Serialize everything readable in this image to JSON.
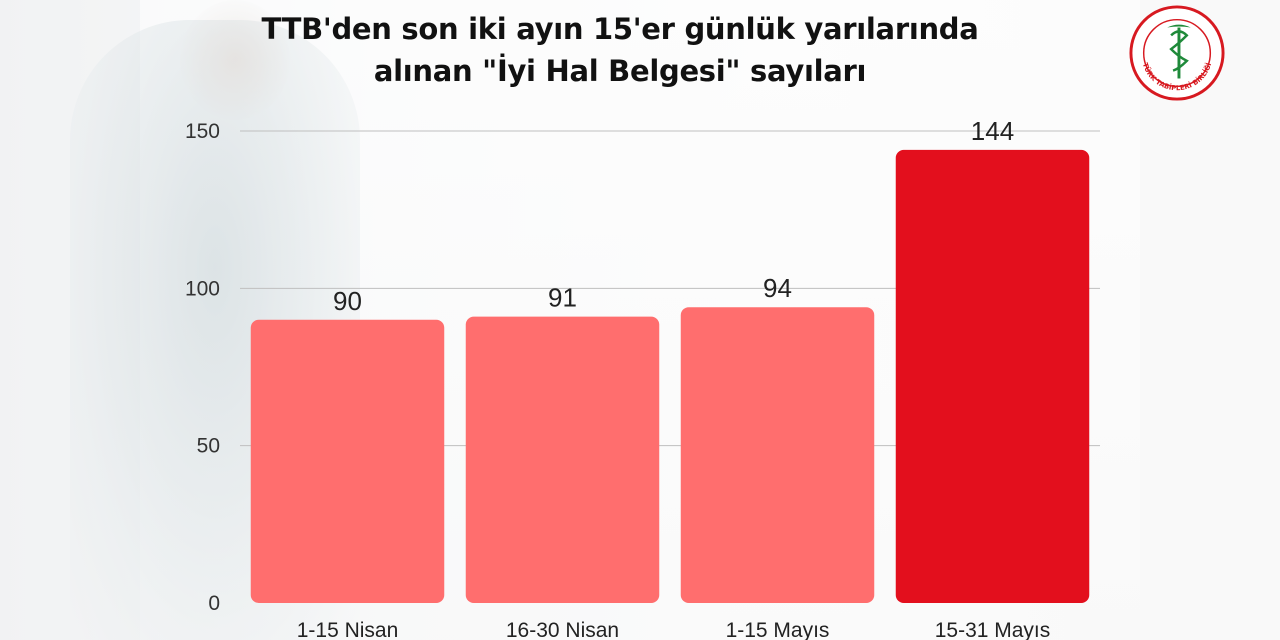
{
  "colors": {
    "bar_default": "#ff6e6e",
    "bar_highlight": "#e30f1d",
    "logo_red": "#d71920"
  },
  "header": {
    "title_line1": "TTB'den son iki ayın 15'er günlük yarılarında",
    "title_line2": "alınan \"İyi Hal Belgesi\" sayıları"
  },
  "logo": {
    "icon": "turk-tabipleri-birligi-logo-icon",
    "text": "TÜRK TABİPLERİ BİRLİĞİ"
  },
  "chart_data": {
    "type": "bar",
    "title": "TTB'den son iki ayın 15'er günlük yarılarında alınan \"İyi Hal Belgesi\" sayıları",
    "categories": [
      "1-15 Nisan",
      "16-30 Nisan",
      "1-15 Mayıs",
      "15-31 Mayıs"
    ],
    "values": [
      90,
      91,
      94,
      144
    ],
    "data_labels": [
      "90",
      "91",
      "94",
      "144"
    ],
    "highlight_index": 3,
    "ylim": [
      0,
      150
    ],
    "yticks": [
      0,
      50,
      100,
      150
    ],
    "ytick_labels": [
      "0",
      "50",
      "100",
      "150"
    ],
    "grid": true,
    "legend": "none"
  }
}
